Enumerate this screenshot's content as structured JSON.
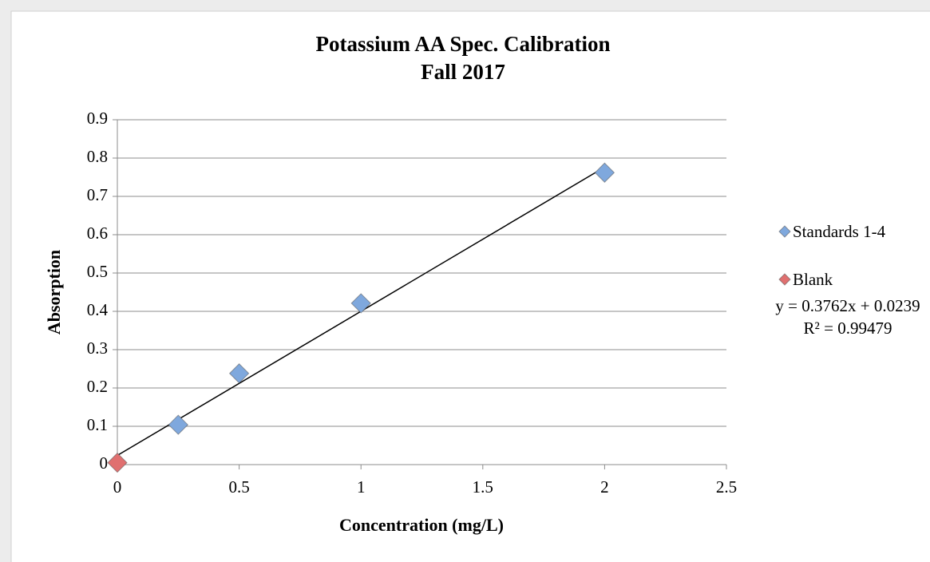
{
  "chart_data": {
    "type": "scatter",
    "title": [
      "Potassium AA Spec. Calibration",
      "Fall 2017"
    ],
    "x_label": "Concentration (mg/L)",
    "y_label": "Absorption",
    "series": [
      {
        "name": "Standards 1-4",
        "color": "#7fa8dd",
        "x": [
          0.25,
          0.5,
          1,
          2
        ],
        "values": [
          0.104,
          0.238,
          0.421,
          0.762
        ]
      },
      {
        "name": "Blank",
        "color": "#e07070",
        "x": [
          0
        ],
        "values": [
          0.005
        ]
      }
    ],
    "trendline": {
      "color": "#000000",
      "x": [
        0,
        2
      ],
      "values": [
        0.0239,
        0.7763
      ]
    },
    "annotations": [
      "y = 0.3762x + 0.0239",
      "R² = 0.99479"
    ],
    "xlim": [
      0,
      2.5
    ],
    "xticks": [
      0,
      0.5,
      1,
      1.5,
      2,
      2.5
    ],
    "ylim": [
      0,
      0.9
    ],
    "yticks": [
      0,
      0.1,
      0.2,
      0.3,
      0.4,
      0.5,
      0.6,
      0.7,
      0.8,
      0.9
    ],
    "grid": true,
    "legend": "right"
  }
}
